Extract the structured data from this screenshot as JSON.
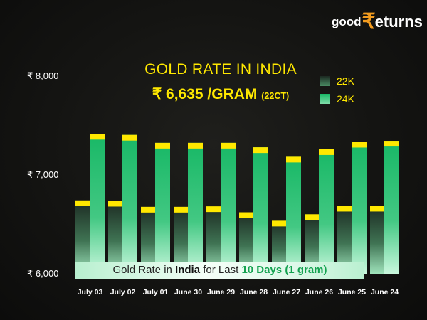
{
  "logo": {
    "prefix": "good",
    "symbol": "₹",
    "suffix": "eturns"
  },
  "header": {
    "title": "GOLD RATE IN INDIA",
    "price": "₹ 6,635 /GRAM",
    "price_unit": "(22CT)"
  },
  "footnote": {
    "part1": "Gold Rate in",
    "part2": "India",
    "part3": "for Last",
    "part4": "10 Days (1 gram)"
  },
  "colors": {
    "series_22k": "#3a6a4c",
    "series_24k": "#1fb86a",
    "cap": "#ffe800",
    "text_accent": "#ffe800"
  },
  "chart_data": {
    "type": "bar",
    "categories": [
      "July 03",
      "July 02",
      "July 01",
      "June 30",
      "June 29",
      "June 28",
      "June 27",
      "June 26",
      "June 25",
      "June 24"
    ],
    "series": [
      {
        "name": "22K",
        "values": [
          6740,
          6735,
          6675,
          6675,
          6680,
          6620,
          6535,
          6600,
          6685,
          6685
        ]
      },
      {
        "name": "24K",
        "values": [
          7410,
          7400,
          7320,
          7320,
          7320,
          7275,
          7180,
          7255,
          7330,
          7340
        ]
      }
    ],
    "y_ticks": [
      "₹ 8,000",
      "₹ 7,000",
      "₹ 6,000"
    ],
    "ylim": [
      6000,
      8000
    ],
    "legend": "top-right",
    "grid": false
  }
}
